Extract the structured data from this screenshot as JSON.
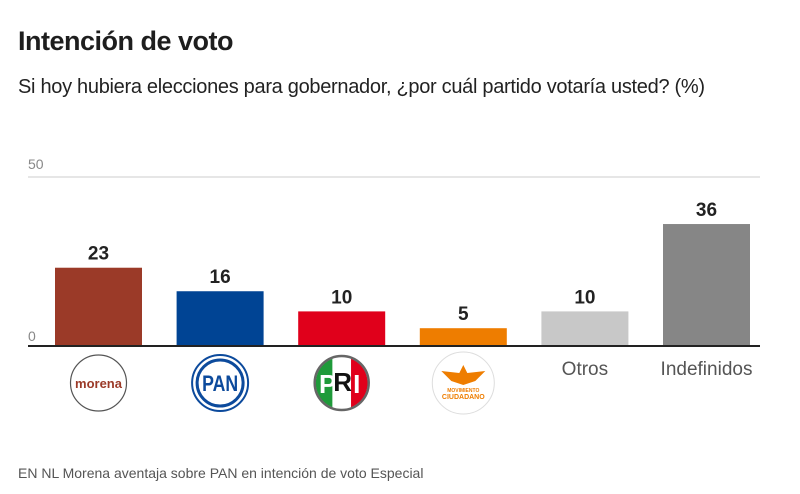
{
  "header": {
    "title": "Intención de voto",
    "subtitle": "Si hoy hubiera elecciones para gobernador, ¿por cuál partido votaría usted? (%)"
  },
  "caption": "EN NL Morena aventaja sobre PAN en intención de voto Especial",
  "chart_data": {
    "type": "bar",
    "title": "Intención de voto",
    "subtitle": "Si hoy hubiera elecciones para gobernador, ¿por cuál partido votaría usted? (%)",
    "xlabel": "",
    "ylabel": "",
    "ylim": [
      0,
      50
    ],
    "yticks": [
      0,
      50
    ],
    "grid": true,
    "categories": [
      "morena",
      "PAN",
      "PRI",
      "Movimiento Ciudadano",
      "Otros",
      "Indefinidos"
    ],
    "category_display": [
      "logo:morena",
      "logo:PAN",
      "logo:PRI",
      "logo:Movimiento Ciudadano",
      "Otros",
      "Indefinidos"
    ],
    "values": [
      23,
      16,
      10,
      5,
      10,
      36
    ],
    "colors": [
      "#9b3a28",
      "#004494",
      "#e0001b",
      "#ee7d00",
      "#c8c8c8",
      "#868686"
    ]
  },
  "logos": {
    "morena": {
      "text": "morena",
      "color": "#9b3a28"
    },
    "pan": {
      "text": "PAN",
      "color": "#0c4a9c"
    },
    "pri": {
      "text_p": "P",
      "text_r": "R",
      "text_i": "I",
      "green": "#1f9a3a",
      "red": "#e0001b"
    },
    "mc": {
      "line1": "MOVIMIENTO",
      "line2": "CIUDADANO",
      "color": "#ee7d00"
    }
  }
}
